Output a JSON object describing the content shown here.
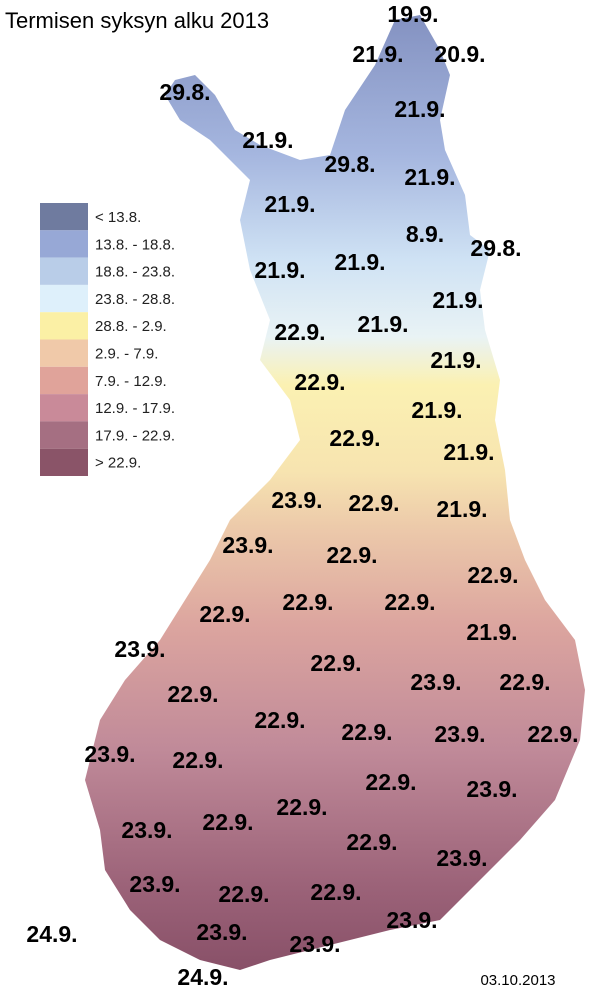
{
  "title": "Termisen syksyn alku 2013",
  "date": "03.10.2013",
  "legend": [
    {
      "label": "< 13.8.",
      "color": "#6f7b9f"
    },
    {
      "label": "13.8. - 18.8.",
      "color": "#97a8d6"
    },
    {
      "label": "18.8. - 23.8.",
      "color": "#b9cde8"
    },
    {
      "label": "23.8. - 28.8.",
      "color": "#def0fb"
    },
    {
      "label": "28.8. - 2.9.",
      "color": "#fbf0a5"
    },
    {
      "label": "2.9. - 7.9.",
      "color": "#f0c9a9"
    },
    {
      "label": "7.9. - 12.9.",
      "color": "#e0a39a"
    },
    {
      "label": "12.9. - 17.9.",
      "color": "#c98a99"
    },
    {
      "label": "17.9. - 22.9.",
      "color": "#a56f82"
    },
    {
      "label": "> 22.9.",
      "color": "#8a5468"
    }
  ],
  "labels": [
    "19.9.",
    "21.9.",
    "20.9.",
    "29.8.",
    "21.9.",
    "21.9.",
    "29.8.",
    "21.9.",
    "21.9.",
    "8.9.",
    "29.8.",
    "21.9.",
    "21.9.",
    "21.9.",
    "22.9.",
    "21.9.",
    "21.9.",
    "22.9.",
    "21.9.",
    "22.9.",
    "21.9.",
    "23.9.",
    "22.9.",
    "21.9.",
    "23.9.",
    "22.9.",
    "22.9.",
    "22.9.",
    "22.9.",
    "22.9.",
    "21.9.",
    "23.9.",
    "22.9.",
    "23.9.",
    "22.9.",
    "22.9.",
    "22.9.",
    "22.9.",
    "23.9.",
    "22.9.",
    "23.9.",
    "22.9.",
    "22.9.",
    "23.9.",
    "22.9.",
    "23.9.",
    "22.9.",
    "22.9.",
    "23.9.",
    "23.9.",
    "22.9.",
    "22.9.",
    "24.9.",
    "23.9.",
    "23.9.",
    "23.9.",
    "24.9."
  ]
}
